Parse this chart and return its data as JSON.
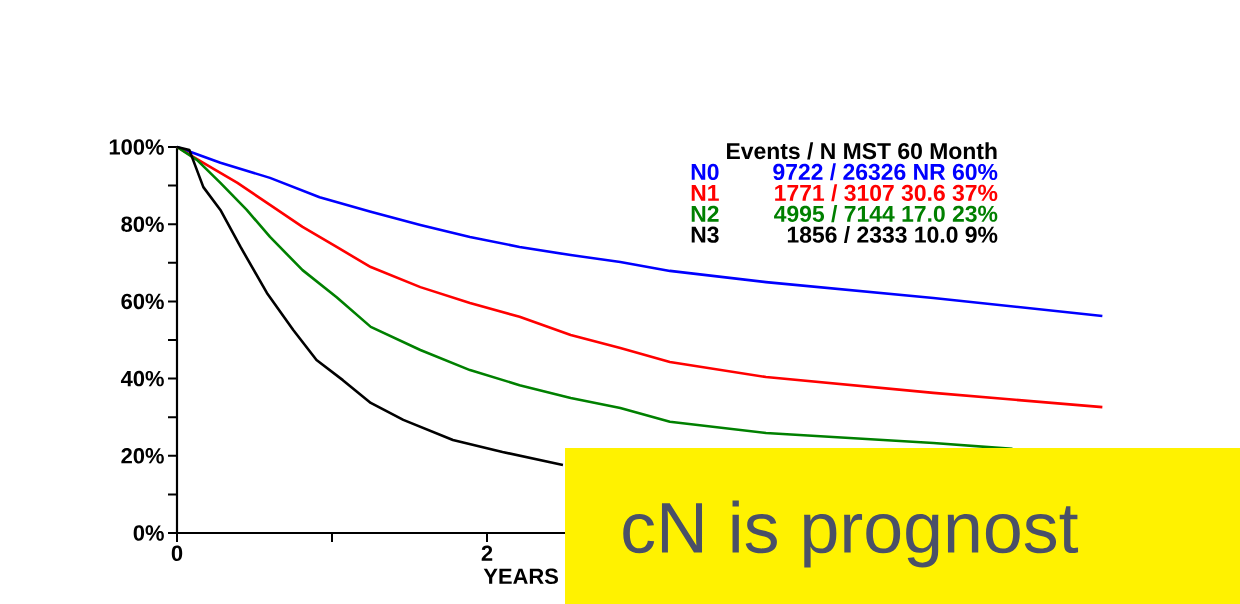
{
  "chart_data": {
    "type": "line",
    "xlabel": "YEARS",
    "xlim": [
      0,
      6
    ],
    "xticks": [
      0,
      {
        "value": 1,
        "label": null
      },
      2
    ],
    "ylim": [
      0,
      100
    ],
    "yticks": [
      {
        "value": 0,
        "label": "0%"
      },
      {
        "value": 10,
        "label": null
      },
      {
        "value": 20,
        "label": "20%"
      },
      {
        "value": 30,
        "label": null
      },
      {
        "value": 40,
        "label": "40%"
      },
      {
        "value": 50,
        "label": null
      },
      {
        "value": 60,
        "label": "60%"
      },
      {
        "value": 70,
        "label": null
      },
      {
        "value": 80,
        "label": "80%"
      },
      {
        "value": 90,
        "label": null
      },
      {
        "value": 100,
        "label": "100%"
      }
    ],
    "grid": false,
    "legend": false,
    "series": [
      {
        "name": "N0",
        "color": "#0000ff",
        "x": [
          0,
          0.28,
          0.6,
          0.92,
          1.25,
          1.57,
          1.89,
          2.21,
          2.54,
          2.86,
          3.18,
          3.8,
          4.88,
          5.97
        ],
        "values": [
          100,
          95.9,
          92,
          87,
          83.2,
          79.8,
          76.7,
          74.1,
          72,
          70.2,
          67.9,
          65,
          60.9,
          56.2
        ]
      },
      {
        "name": "N1",
        "color": "#ff0000",
        "x": [
          0,
          0.17,
          0.39,
          0.6,
          0.81,
          1.03,
          1.25,
          1.57,
          1.89,
          2.21,
          2.54,
          2.86,
          3.18,
          3.8,
          4.88,
          5.97
        ],
        "values": [
          100,
          95.9,
          90.7,
          85,
          79.3,
          74.1,
          68.9,
          63.7,
          59.6,
          56,
          51.3,
          47.9,
          44.3,
          40.4,
          36.3,
          32.6
        ]
      },
      {
        "name": "N2",
        "color": "#008000",
        "x": [
          0,
          0.13,
          0.28,
          0.45,
          0.6,
          0.81,
          1.03,
          1.25,
          1.57,
          1.89,
          2.21,
          2.54,
          2.86,
          3.18,
          3.8,
          4.88,
          5.39
        ],
        "values": [
          100,
          96.6,
          90.7,
          83.7,
          76.7,
          68.1,
          61.1,
          53.4,
          47.4,
          42.2,
          38.3,
          35,
          32.4,
          28.8,
          25.9,
          23.3,
          21.8
        ]
      },
      {
        "name": "N3",
        "color": "#000000",
        "x": [
          0,
          0.08,
          0.17,
          0.28,
          0.41,
          0.58,
          0.75,
          0.9,
          1.07,
          1.25,
          1.46,
          1.78,
          2.1,
          2.49
        ],
        "values": [
          100,
          99.2,
          89.6,
          83.7,
          74.1,
          62.2,
          52.6,
          44.8,
          39.6,
          33.7,
          29.3,
          24.1,
          21,
          17.6
        ]
      }
    ],
    "annotations": [
      "Events / N MST 60 Month",
      "9722 / 26326 NR 60%",
      "1771 / 3107 30.6 37%",
      "4995 / 7144 17.0 23%",
      "1856 / 2333 10.0 9%",
      "cN is prognost"
    ]
  }
}
